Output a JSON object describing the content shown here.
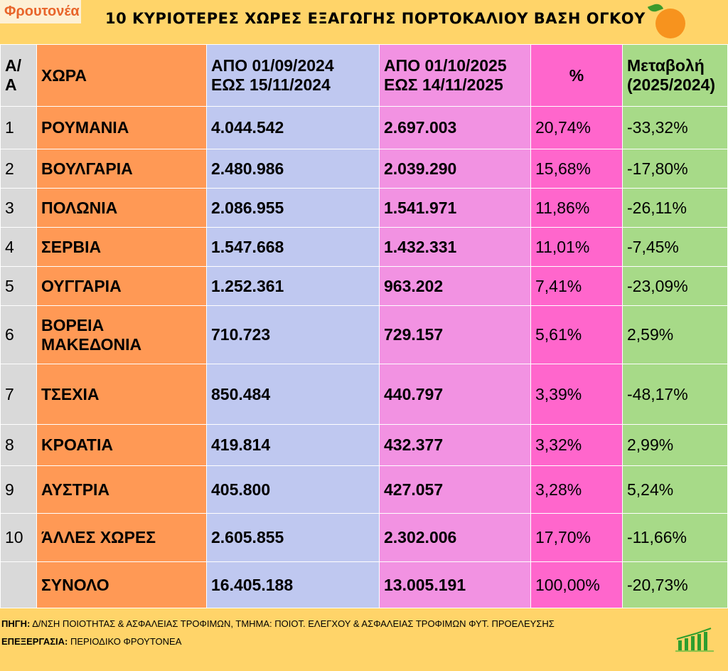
{
  "logo": "Φρουτονέα",
  "title": "10 ΚΥΡΙΟΤΕΡΕΣ ΧΩΡΕΣ ΕΞΑΓΩΓΗΣ ΠΟΡΤΟΚΑΛΙΟΥ ΒΑΣΗ ΟΓΚΟΥ",
  "chart_data": {
    "type": "table",
    "title": "10 ΚΥΡΙΟΤΕΡΕΣ ΧΩΡΕΣ ΕΞΑΓΩΓΗΣ ΠΟΡΤΟΚΑΛΙΟΥ ΒΑΣΗ ΟΓΚΟΥ",
    "headers": [
      [
        "Α/Α"
      ],
      [
        "ΧΩΡΑ"
      ],
      [
        "ΑΠΟ 01/09/2024",
        "ΕΩΣ  15/11/2024"
      ],
      [
        "ΑΠΟ 01/10/2025",
        "ΕΩΣ  14/11/2025"
      ],
      [
        "%"
      ],
      [
        "Μεταβολή",
        "(2025/2024)"
      ]
    ],
    "rows": [
      [
        "1",
        "ΡΟΥΜΑΝΙΑ",
        "4.044.542",
        "2.697.003",
        "20,74%",
        "-33,32%"
      ],
      [
        "2",
        "ΒΟΥΛΓΑΡΙΑ",
        "2.480.986",
        "2.039.290",
        "15,68%",
        "-17,80%"
      ],
      [
        "3",
        "ΠΟΛΩΝΙΑ",
        "2.086.955",
        "1.541.971",
        "11,86%",
        "-26,11%"
      ],
      [
        "4",
        "ΣΕΡΒΙΑ",
        "1.547.668",
        "1.432.331",
        "11,01%",
        "-7,45%"
      ],
      [
        "5",
        "ΟΥΓΓΑΡΙΑ",
        "1.252.361",
        "963.202",
        "7,41%",
        "-23,09%"
      ],
      [
        "6",
        "ΒΟΡΕΙΑ ΜΑΚΕΔΟΝΙΑ",
        "710.723",
        "729.157",
        "5,61%",
        "2,59%"
      ],
      [
        "7",
        "ΤΣΕΧΙΑ",
        "850.484",
        "440.797",
        "3,39%",
        "-48,17%"
      ],
      [
        "8",
        "ΚΡΟΑΤΙΑ",
        "419.814",
        "432.377",
        "3,32%",
        "2,99%"
      ],
      [
        "9",
        "ΑΥΣΤΡΙΑ",
        "405.800",
        "427.057",
        "3,28%",
        "5,24%"
      ],
      [
        "10",
        "ΆΛΛΕΣ ΧΩΡΕΣ",
        "2.605.855",
        "2.302.006",
        "17,70%",
        "-11,66%"
      ],
      [
        "",
        "ΣΥΝΟΛΟ",
        "16.405.188",
        "13.005.191",
        "100,00%",
        "-20,73%"
      ]
    ]
  },
  "footer": {
    "source_label": "ΠΗΓΗ:",
    "source": " Δ/ΝΣΗ ΠΟΙΟΤΗΤΑΣ & ΑΣΦΑΛΕΙΑΣ ΤΡΟΦΙΜΩΝ, ΤΜΗΜΑ: ΠΟΙΟΤ. ΕΛΕΓΧΟΥ & ΑΣΦΑΛΕΙΑΣ ΤΡΟΦΙΜΩΝ ΦΥΤ. ΠΡΟΕΛΕΥΣΗΣ",
    "processing_label": "ΕΠΕΞΕΡΓΑΣΙΑ:",
    "processing": " ΠΕΡΙΟΔΙΚΟ ΦΡΟΥΤΟΝΕΑ"
  }
}
